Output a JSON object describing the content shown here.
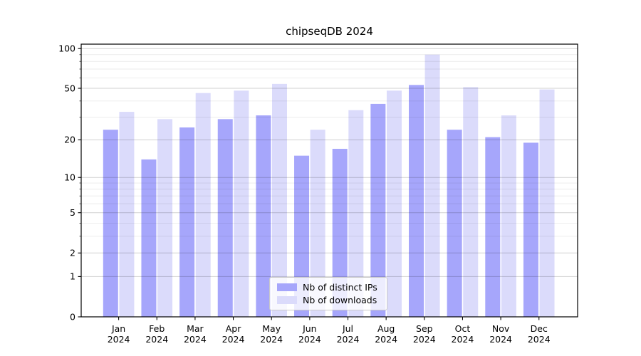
{
  "chart_data": {
    "type": "bar",
    "title": "chipseqDB 2024",
    "yscale": "log1p",
    "ylim": [
      0,
      108
    ],
    "yticks": [
      0,
      1,
      2,
      5,
      10,
      20,
      50,
      100
    ],
    "yticks_minor": [
      3,
      4,
      6,
      7,
      8,
      9,
      30,
      40,
      60,
      70,
      80,
      90
    ],
    "grid": true,
    "legend_position": "lower center",
    "categories": [
      "Jan",
      "Feb",
      "Mar",
      "Apr",
      "May",
      "Jun",
      "Jul",
      "Aug",
      "Sep",
      "Oct",
      "Nov",
      "Dec"
    ],
    "category_year": "2024",
    "series": [
      {
        "name": "Nb of distinct IPs",
        "color": "#a6a6fb",
        "values": [
          24,
          14,
          25,
          29,
          31,
          15,
          17,
          38,
          53,
          24,
          21,
          19
        ]
      },
      {
        "name": "Nb of downloads",
        "color": "#dbdbfb",
        "values": [
          33,
          29,
          46,
          48,
          54,
          24,
          34,
          48,
          90,
          51,
          31,
          49
        ]
      }
    ]
  }
}
